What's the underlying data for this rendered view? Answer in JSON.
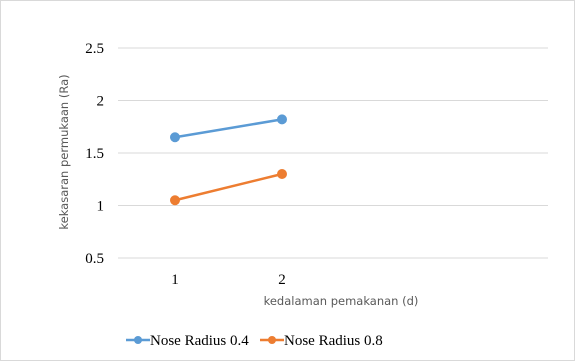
{
  "chart_data": {
    "type": "line",
    "title": "",
    "xlabel": "kedalaman pemakanan (d)",
    "ylabel": "kekasaran permukaan (Ra)",
    "categories": [
      "1",
      "2"
    ],
    "ylim": [
      0.5,
      2.5
    ],
    "yticks": [
      "0.5",
      "1",
      "1.5",
      "2",
      "2.5"
    ],
    "grid": true,
    "legend_position": "bottom",
    "series": [
      {
        "name": "Nose Radius 0.4",
        "color": "#5b9bd5",
        "values": [
          1.65,
          1.82
        ]
      },
      {
        "name": "Nose Radius 0.8",
        "color": "#ed7d31",
        "values": [
          1.05,
          1.3
        ]
      }
    ]
  }
}
